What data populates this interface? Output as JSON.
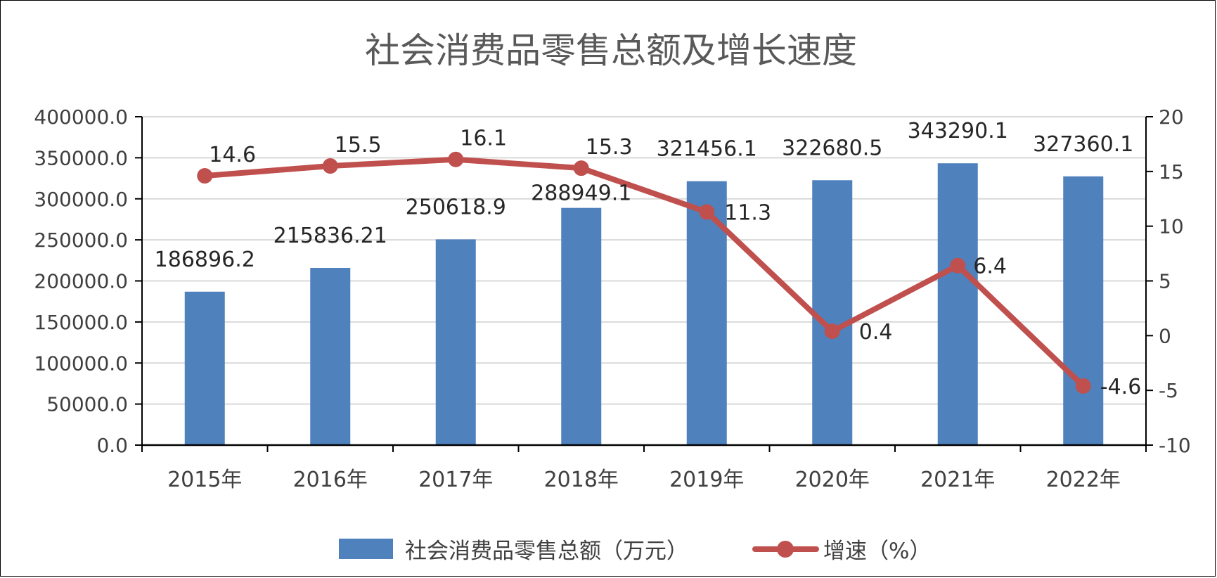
{
  "chart_data": {
    "type": "bar+line",
    "title": "社会消费品零售总额及增长速度",
    "categories": [
      "2015年",
      "2016年",
      "2017年",
      "2018年",
      "2019年",
      "2020年",
      "2021年",
      "2022年"
    ],
    "series": [
      {
        "name": "社会消费品零售总额（万元）",
        "type": "bar",
        "axis": "left",
        "values": [
          186896.2,
          215836.21,
          250618.9,
          288949.1,
          321456.1,
          322680.5,
          343290.1,
          327360.1
        ],
        "labels": [
          "186896.2",
          "215836.21",
          "250618.9",
          "288949.1",
          "321456.1",
          "322680.5",
          "343290.1",
          "327360.1"
        ],
        "color": "#4F81BD"
      },
      {
        "name": "增速（%）",
        "type": "line",
        "axis": "right",
        "values": [
          14.6,
          15.5,
          16.1,
          15.3,
          11.3,
          0.4,
          6.4,
          -4.6
        ],
        "labels": [
          "14.6",
          "15.5",
          "16.1",
          "15.3",
          "11.3",
          "0.4",
          "6.4",
          "-4.6"
        ],
        "color": "#C0504D"
      }
    ],
    "y_left": {
      "min": 0,
      "max": 400000,
      "step": 50000,
      "tick_labels": [
        "0.0",
        "50000.0",
        "100000.0",
        "150000.0",
        "200000.0",
        "250000.0",
        "300000.0",
        "350000.0",
        "400000.0"
      ]
    },
    "y_right": {
      "min": -10,
      "max": 20,
      "step": 5,
      "tick_labels": [
        "-10",
        "-5",
        "0",
        "5",
        "10",
        "15",
        "20"
      ]
    },
    "grid": true,
    "legend": "bottom"
  }
}
